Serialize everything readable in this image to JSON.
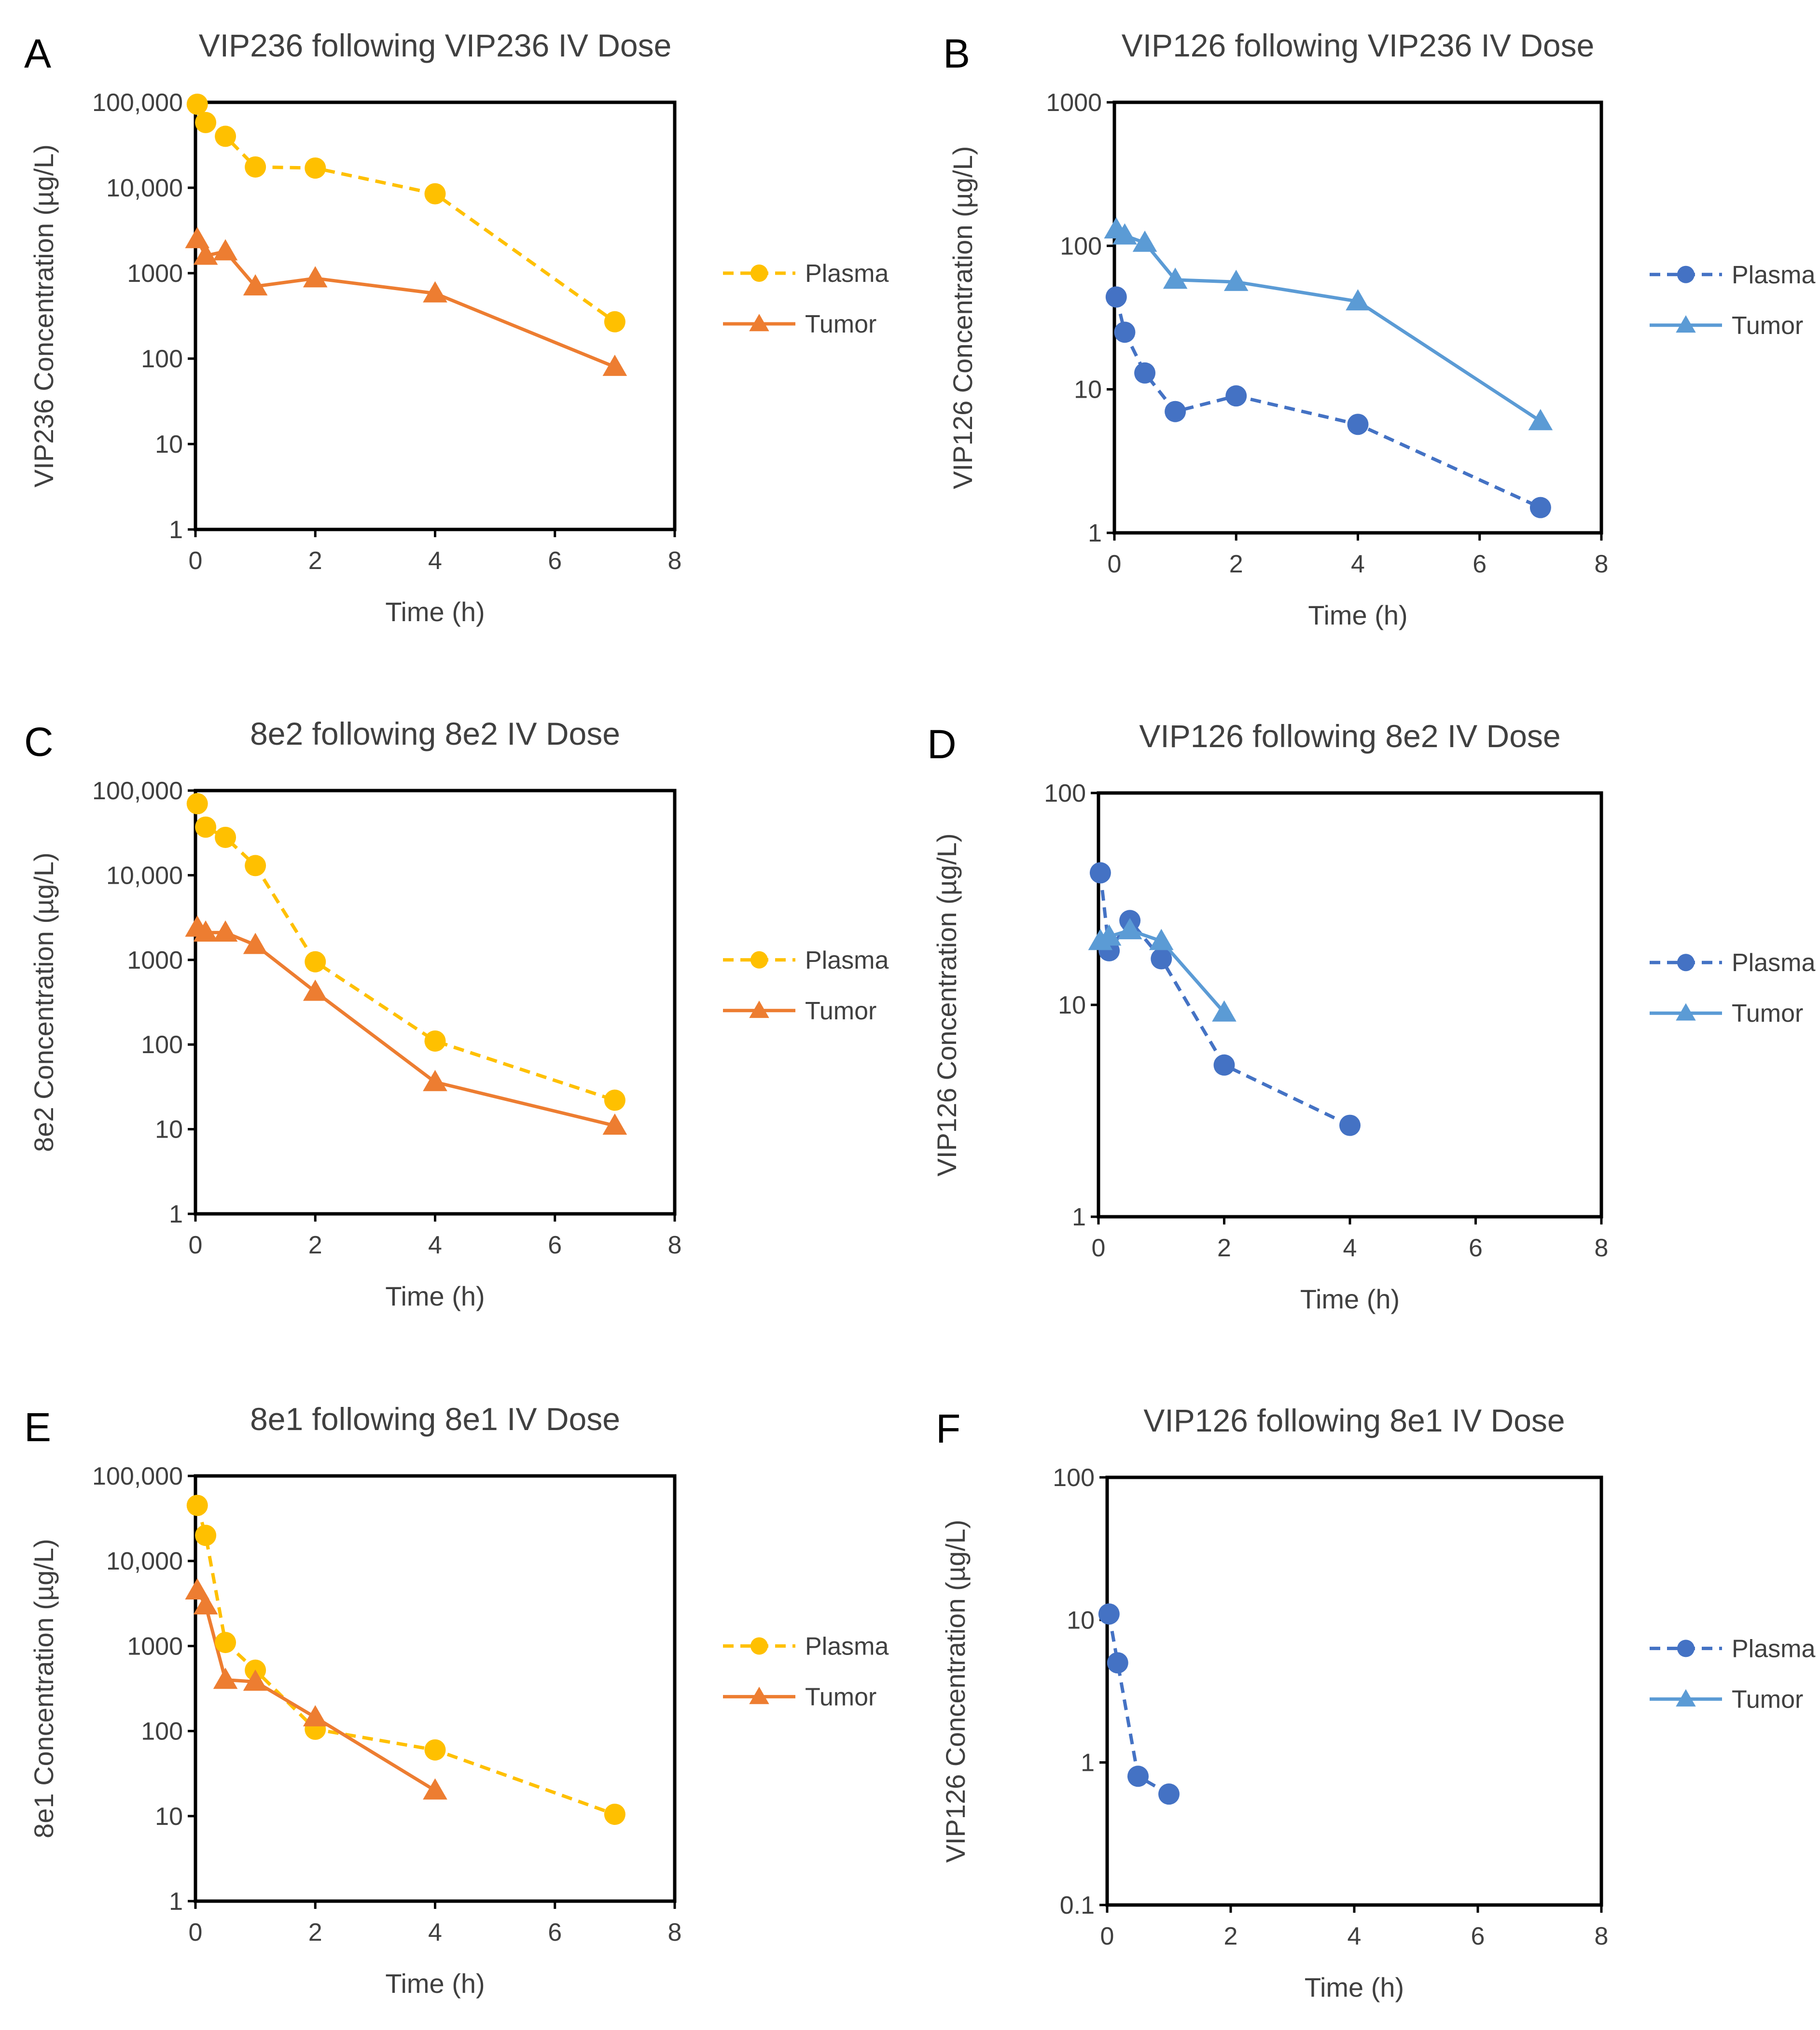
{
  "chart_data": [
    {
      "type": "line",
      "panel": "A",
      "title": "VIP236 following VIP236 IV Dose",
      "xlabel": "Time (h)",
      "ylabel": "VIP236 Concentration (µg/L)",
      "xlim": [
        0,
        8
      ],
      "ylim": [
        1,
        100000
      ],
      "yscale": "log",
      "xticks": [
        "0",
        "2",
        "4",
        "6",
        "8"
      ],
      "yticks": [
        "1",
        "10",
        "100",
        "1000",
        "10,000",
        "100,000"
      ],
      "legend_position": "right",
      "series": [
        {
          "name": "Plasma",
          "color": "#FFC000",
          "marker": "circle",
          "line": "dashed",
          "x": [
            0.03,
            0.17,
            0.5,
            1,
            2,
            4,
            7
          ],
          "y": [
            95000,
            58000,
            40000,
            17500,
            17000,
            8500,
            270
          ]
        },
        {
          "name": "Tumor",
          "color": "#ED7D31",
          "marker": "triangle",
          "line": "solid",
          "x": [
            0.03,
            0.17,
            0.5,
            1,
            2,
            4,
            7
          ],
          "y": [
            2500,
            1600,
            1800,
            700,
            870,
            580,
            80
          ]
        }
      ]
    },
    {
      "type": "line",
      "panel": "B",
      "title": "VIP126 following VIP236 IV Dose",
      "xlabel": "Time (h)",
      "ylabel": "VIP126 Concentration (µg/L)",
      "xlim": [
        0,
        8
      ],
      "ylim": [
        1,
        1000
      ],
      "yscale": "log",
      "xticks": [
        "0",
        "2",
        "4",
        "6",
        "8"
      ],
      "yticks": [
        "1",
        "10",
        "100",
        "1000"
      ],
      "legend_position": "right",
      "series": [
        {
          "name": "Plasma",
          "color": "#4472C4",
          "marker": "circle",
          "line": "dashed",
          "x": [
            0.03,
            0.17,
            0.5,
            1,
            2,
            4,
            7
          ],
          "y": [
            44,
            25,
            13,
            7,
            9,
            5.7,
            1.5
          ]
        },
        {
          "name": "Tumor",
          "color": "#5B9BD5",
          "marker": "triangle",
          "line": "solid",
          "x": [
            0.03,
            0.17,
            0.5,
            1,
            2,
            4,
            7
          ],
          "y": [
            130,
            118,
            105,
            58,
            56,
            41,
            6
          ]
        }
      ]
    },
    {
      "type": "line",
      "panel": "C",
      "title": "8e2 following 8e2 IV Dose",
      "xlabel": "Time (h)",
      "ylabel": "8e2 Concentration (µg/L)",
      "xlim": [
        0,
        8
      ],
      "ylim": [
        1,
        100000
      ],
      "yscale": "log",
      "xticks": [
        "0",
        "2",
        "4",
        "6",
        "8"
      ],
      "yticks": [
        "1",
        "10",
        "100",
        "1000",
        "10,000",
        "100,000"
      ],
      "legend_position": "right",
      "series": [
        {
          "name": "Plasma",
          "color": "#FFC000",
          "marker": "circle",
          "line": "dashed",
          "x": [
            0.03,
            0.17,
            0.5,
            1,
            2,
            4,
            7
          ],
          "y": [
            70000,
            37000,
            28000,
            13000,
            950,
            110,
            22
          ]
        },
        {
          "name": "Tumor",
          "color": "#ED7D31",
          "marker": "triangle",
          "line": "solid",
          "x": [
            0.03,
            0.17,
            0.5,
            1,
            2,
            4,
            7
          ],
          "y": [
            2400,
            2100,
            2100,
            1500,
            420,
            36,
            11
          ]
        }
      ]
    },
    {
      "type": "line",
      "panel": "D",
      "title": "VIP126 following 8e2 IV Dose",
      "xlabel": "Time (h)",
      "ylabel": "VIP126 Concentration (µg/L)",
      "xlim": [
        0,
        8
      ],
      "ylim": [
        1,
        100
      ],
      "yscale": "log",
      "xticks": [
        "0",
        "2",
        "4",
        "6",
        "8"
      ],
      "yticks": [
        "1",
        "10",
        "100"
      ],
      "legend_position": "right",
      "series": [
        {
          "name": "Plasma",
          "color": "#4472C4",
          "marker": "circle",
          "line": "dashed",
          "x": [
            0.03,
            0.17,
            0.5,
            1,
            2,
            4
          ],
          "y": [
            42,
            18,
            25,
            16.5,
            5.2,
            2.7
          ]
        },
        {
          "name": "Tumor",
          "color": "#5B9BD5",
          "marker": "triangle",
          "line": "solid",
          "x": [
            0.03,
            0.17,
            0.5,
            1,
            2
          ],
          "y": [
            20,
            21,
            22.5,
            20,
            9.2
          ]
        }
      ]
    },
    {
      "type": "line",
      "panel": "E",
      "title": "8e1 following 8e1 IV Dose",
      "xlabel": "Time (h)",
      "ylabel": "8e1 Concentration (µg/L)",
      "xlim": [
        0,
        8
      ],
      "ylim": [
        1,
        100000
      ],
      "yscale": "log",
      "xticks": [
        "0",
        "2",
        "4",
        "6",
        "8"
      ],
      "yticks": [
        "1",
        "10",
        "100",
        "1000",
        "10,000",
        "100,000"
      ],
      "legend_position": "right",
      "series": [
        {
          "name": "Plasma",
          "color": "#FFC000",
          "marker": "circle",
          "line": "dashed",
          "x": [
            0.03,
            0.17,
            0.5,
            1,
            2,
            4,
            7
          ],
          "y": [
            45000,
            20000,
            1100,
            520,
            105,
            60,
            10.5
          ]
        },
        {
          "name": "Tumor",
          "color": "#ED7D31",
          "marker": "triangle",
          "line": "solid",
          "x": [
            0.03,
            0.17,
            0.5,
            1,
            2,
            4
          ],
          "y": [
            4500,
            3000,
            400,
            380,
            145,
            20
          ]
        }
      ]
    },
    {
      "type": "line",
      "panel": "F",
      "title": "VIP126 following 8e1 IV Dose",
      "xlabel": "Time (h)",
      "ylabel": "VIP126 Concentration (µg/L)",
      "xlim": [
        0,
        8
      ],
      "ylim": [
        0.1,
        100
      ],
      "yscale": "log",
      "xticks": [
        "0",
        "2",
        "4",
        "6",
        "8"
      ],
      "yticks": [
        "0.1",
        "1",
        "10",
        "100"
      ],
      "legend_position": "right",
      "series": [
        {
          "name": "Plasma",
          "color": "#4472C4",
          "marker": "circle",
          "line": "dashed",
          "x": [
            0.03,
            0.17,
            0.5,
            1
          ],
          "y": [
            11,
            5,
            0.8,
            0.6
          ]
        },
        {
          "name": "Tumor",
          "color": "#5B9BD5",
          "marker": "triangle",
          "line": "solid",
          "x": [],
          "y": []
        }
      ]
    }
  ]
}
